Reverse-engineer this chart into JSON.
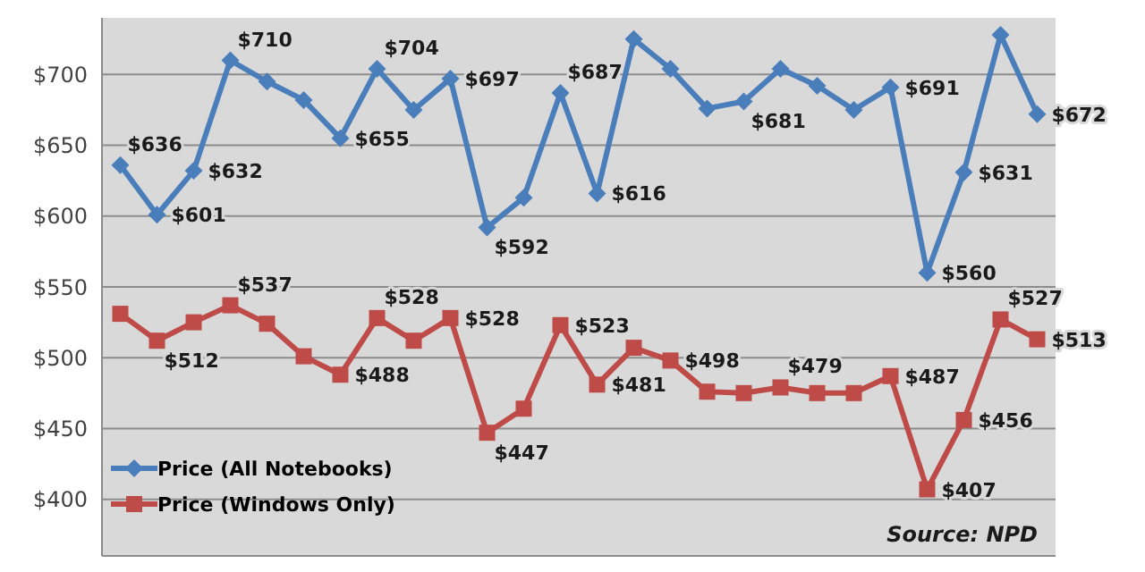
{
  "chart_data": {
    "type": "line",
    "categories": [
      null,
      null,
      null,
      null,
      null,
      null,
      null,
      null,
      null,
      null,
      null,
      null,
      null,
      null,
      null,
      null,
      null,
      null,
      null,
      null,
      null,
      null,
      null,
      null,
      null,
      null
    ],
    "series": [
      {
        "name": "Price (All Notebooks)",
        "color": "#4a7ebb",
        "marker": "diamond",
        "values": [
          636,
          601,
          632,
          710,
          695,
          682,
          655,
          704,
          675,
          697,
          592,
          613,
          687,
          616,
          725,
          704,
          676,
          681,
          704,
          692,
          675,
          691,
          560,
          631,
          728,
          672
        ],
        "value_labels": [
          "$636",
          "$601",
          "$632",
          "$710",
          null,
          null,
          "$655",
          "$704",
          null,
          "$697",
          "$592",
          null,
          "$687",
          "$616",
          null,
          null,
          null,
          "$681",
          null,
          null,
          null,
          "$691",
          "$560",
          "$631",
          null,
          "$672"
        ]
      },
      {
        "name": "Price (Windows Only)",
        "color": "#be4b48",
        "marker": "square",
        "values": [
          531,
          512,
          525,
          537,
          524,
          501,
          488,
          528,
          512,
          528,
          447,
          464,
          523,
          481,
          507,
          498,
          476,
          475,
          479,
          475,
          475,
          487,
          407,
          456,
          527,
          513
        ],
        "value_labels": [
          null,
          "$512",
          null,
          "$537",
          null,
          null,
          "$488",
          "$528",
          null,
          "$528",
          "$447",
          null,
          "$523",
          "$481",
          null,
          "$498",
          null,
          null,
          "$479",
          null,
          null,
          "$487",
          "$407",
          "$456",
          "$527",
          "$513"
        ]
      }
    ],
    "ylim": [
      360,
      740
    ],
    "yticks": [
      {
        "value": 400,
        "label": "$400"
      },
      {
        "value": 450,
        "label": "$450"
      },
      {
        "value": 500,
        "label": "$500"
      },
      {
        "value": 550,
        "label": "$550"
      },
      {
        "value": 600,
        "label": "$600"
      },
      {
        "value": 650,
        "label": "$650"
      },
      {
        "value": 700,
        "label": "$700"
      }
    ],
    "grid": "y",
    "tick_labels": "y",
    "legend": "bottom left",
    "line_style": "solid",
    "annotations": [
      "Source: NPD"
    ]
  }
}
